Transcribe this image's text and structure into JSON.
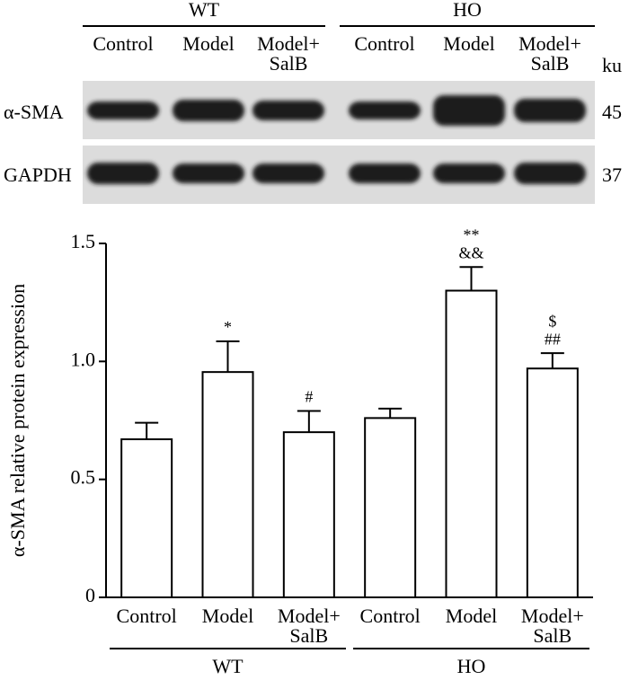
{
  "blot": {
    "groups": [
      "WT",
      "HO"
    ],
    "lanes": [
      "Control",
      "Model",
      "Model+ SalB",
      "Control",
      "Model",
      "Model+ SalB"
    ],
    "unit": "ku",
    "rows": [
      {
        "label": "α-SMA",
        "size": "45"
      },
      {
        "label": "GAPDH",
        "size": "37"
      }
    ]
  },
  "chart_data": {
    "type": "bar",
    "ylabel": "α-SMA relative protein expression",
    "categories": [
      "Control",
      "Model",
      "Model+ SalB",
      "Control",
      "Model",
      "Model+ SalB"
    ],
    "values": [
      0.67,
      0.955,
      0.7,
      0.76,
      1.3,
      0.97
    ],
    "errors": [
      0.07,
      0.13,
      0.09,
      0.04,
      0.1,
      0.065
    ],
    "annotations": [
      null,
      [
        "*"
      ],
      [
        "#"
      ],
      null,
      [
        "**",
        "&&"
      ],
      [
        "$",
        "##"
      ]
    ],
    "groups": [
      {
        "label": "WT",
        "size": 3
      },
      {
        "label": "HO",
        "size": 3
      }
    ],
    "color": "#ffffff",
    "ylim": [
      0,
      1.5
    ],
    "yticks": [
      0,
      0.5,
      {
        "value": 1,
        "label": "1.0"
      },
      1.5
    ]
  }
}
